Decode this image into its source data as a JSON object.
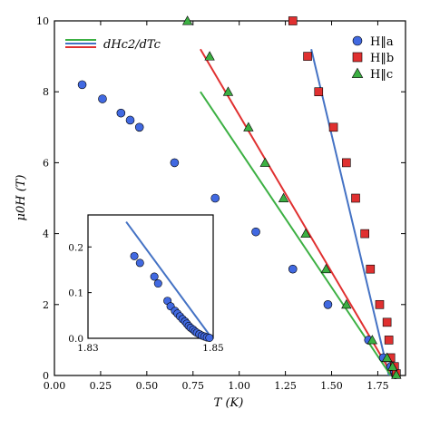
{
  "chart_data": {
    "type": "scatter",
    "xlabel": "T (K)",
    "ylabel": "μ0H (T)",
    "xlim": [
      0.0,
      1.9
    ],
    "ylim": [
      0,
      10
    ],
    "xticks": [
      "0.00",
      "0.25",
      "0.50",
      "0.75",
      "1.00",
      "1.25",
      "1.50",
      "1.75"
    ],
    "yticks": [
      "0",
      "2",
      "4",
      "6",
      "8",
      "10"
    ],
    "legend_position": "top-right",
    "fit_legend": {
      "label": "dHc2/dTc",
      "position": "top-left",
      "colors": [
        "#2ca02c",
        "#4472c4",
        "#e03030"
      ]
    },
    "series": [
      {
        "name": "H‖a",
        "marker": "circle",
        "color": "#4169e1",
        "x": [
          0.15,
          0.26,
          0.36,
          0.41,
          0.46,
          0.65,
          0.87,
          1.09,
          1.29,
          1.48,
          1.7,
          1.78,
          1.82,
          1.84,
          1.845
        ],
        "y": [
          8.2,
          7.8,
          7.4,
          7.2,
          7.0,
          6.0,
          5.0,
          4.05,
          3.0,
          2.0,
          1.0,
          0.5,
          0.25,
          0.1,
          0.02
        ]
      },
      {
        "name": "H‖b",
        "marker": "square",
        "color": "#e03030",
        "x": [
          1.29,
          1.37,
          1.43,
          1.51,
          1.58,
          1.63,
          1.68,
          1.71,
          1.76,
          1.8,
          1.81,
          1.82,
          1.84,
          1.85
        ],
        "y": [
          10.0,
          9.0,
          8.0,
          7.0,
          6.0,
          5.0,
          4.0,
          3.0,
          2.0,
          1.5,
          1.0,
          0.5,
          0.25,
          0.05
        ]
      },
      {
        "name": "H‖c",
        "marker": "triangle",
        "color": "#3cb043",
        "x": [
          0.72,
          0.84,
          0.94,
          1.05,
          1.14,
          1.24,
          1.36,
          1.47,
          1.58,
          1.72,
          1.8,
          1.83,
          1.85
        ],
        "y": [
          10.0,
          9.0,
          8.0,
          7.0,
          6.0,
          5.0,
          4.0,
          3.0,
          2.0,
          1.0,
          0.5,
          0.25,
          0.02
        ]
      }
    ],
    "fit_lines": [
      {
        "color": "#4472c4",
        "x": [
          1.39,
          1.81
        ],
        "y": [
          9.2,
          0.0
        ]
      },
      {
        "color": "#e03030",
        "x": [
          0.79,
          1.83
        ],
        "y": [
          9.2,
          0.0
        ]
      },
      {
        "color": "#3cb043",
        "x": [
          0.79,
          1.82
        ],
        "y": [
          8.0,
          0.0
        ]
      }
    ],
    "inset": {
      "xlim": [
        1.83,
        1.85
      ],
      "ylim": [
        0.0,
        0.27
      ],
      "xticks": [
        "1.83",
        "1.85"
      ],
      "yticks": [
        "0.0",
        "0.1",
        "0.2"
      ],
      "points_x": [
        1.8374,
        1.8383,
        1.8406,
        1.8412,
        1.8427,
        1.8432,
        1.8439,
        1.8443,
        1.8447,
        1.8451,
        1.8455,
        1.8458,
        1.8461,
        1.8464,
        1.8468,
        1.8471,
        1.8474,
        1.8478,
        1.8482,
        1.8486,
        1.849,
        1.8494
      ],
      "points_y": [
        0.18,
        0.165,
        0.135,
        0.12,
        0.082,
        0.07,
        0.06,
        0.054,
        0.048,
        0.042,
        0.037,
        0.032,
        0.027,
        0.023,
        0.019,
        0.015,
        0.012,
        0.009,
        0.006,
        0.004,
        0.002,
        0.001
      ],
      "fit_x": [
        1.8361,
        1.8498
      ],
      "fit_y": [
        0.255,
        0.0
      ]
    }
  }
}
